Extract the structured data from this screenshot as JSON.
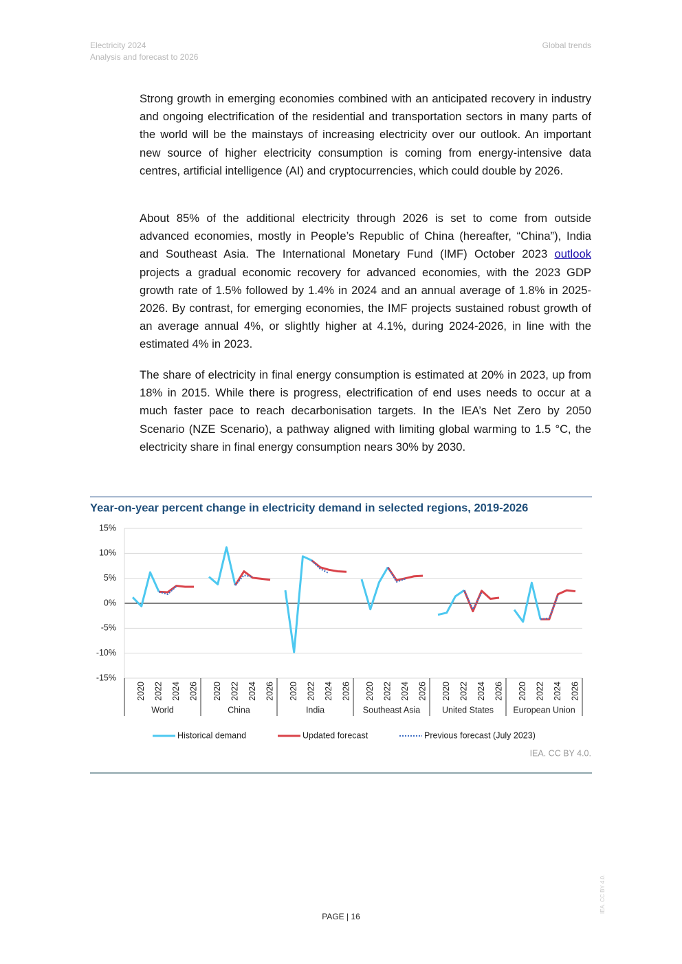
{
  "header": {
    "left_line1": "Electricity 2024",
    "left_line2": "Analysis and forecast to 2026",
    "right": "Global trends"
  },
  "paragraph_1": "Strong growth in emerging economies combined with an anticipated recovery in industry and ongoing electrification of the residential and transportation sectors in many parts of the world will be the mainstays of increasing electricity over our outlook. An important new source of higher electricity consumption is coming from energy-intensive data centres, artificial intelligence (AI) and cryptocurrencies, which could double by 2026.",
  "paragraph_2": {
    "before": "About 85% of the additional electricity through 2026 is set to come from outside advanced economies, mostly in People’s Republic of China (hereafter, “China”), India and Southeast Asia. The International Monetary Fund (IMF) October 2023 ",
    "link": "outlook",
    "after": " projects a gradual economic recovery for advanced economies, with the 2023 GDP growth rate of 1.5% followed by 1.4% in 2024 and an annual average of 1.8% in 2025-2026. By contrast, for emerging economies, the IMF projects sustained robust growth of an average annual 4%, or slightly higher at 4.1%, during 2024-2026, in line with the estimated 4% in 2023."
  },
  "paragraph_3": "The share of electricity in final energy consumption is estimated at 20% in 2023, up from 18% in 2015. While there is progress, electrification of end uses needs to occur at a much faster pace to reach decarbonisation targets. In the IEA’s Net Zero by 2050 Scenario (NZE Scenario), a pathway aligned with limiting global warming to 1.5 °C, the electricity share in final energy consumption nears 30% by 2030.",
  "chart_data": {
    "type": "line",
    "title": "Year-on-year percent change in electricity demand in selected regions, 2019-2026",
    "groups": [
      "World",
      "China",
      "India",
      "Southeast Asia",
      "United States",
      "European Union"
    ],
    "categories": [
      null,
      "2020",
      null,
      "2022",
      null,
      "2024",
      null,
      "2026"
    ],
    "series": [
      {
        "name": "Historical demand",
        "color": "#4dc8f0",
        "style": "solid",
        "values": [
          [
            1.2,
            -0.6,
            6.2,
            2.3,
            null,
            null,
            null,
            null
          ],
          [
            5.3,
            3.8,
            11.2,
            3.6,
            null,
            null,
            null,
            null
          ],
          [
            2.6,
            -9.8,
            9.4,
            8.6,
            null,
            null,
            null,
            null
          ],
          [
            4.8,
            -1.2,
            4.2,
            7.2,
            null,
            null,
            null,
            null
          ],
          [
            -2.3,
            -1.9,
            1.4,
            2.6,
            null,
            null,
            null,
            null
          ],
          [
            -1.3,
            -3.7,
            4.1,
            -3.2,
            null,
            null,
            null,
            null
          ]
        ]
      },
      {
        "name": "Updated forecast",
        "color": "#d9434a",
        "style": "solid",
        "values": [
          [
            null,
            null,
            null,
            2.3,
            2.2,
            3.5,
            3.3,
            3.3
          ],
          [
            null,
            null,
            null,
            3.6,
            6.4,
            5.1,
            4.9,
            4.7
          ],
          [
            null,
            null,
            null,
            8.6,
            7.2,
            6.7,
            6.4,
            6.3
          ],
          [
            null,
            null,
            null,
            7.2,
            4.6,
            5.0,
            5.4,
            5.5
          ],
          [
            null,
            null,
            null,
            2.6,
            -1.6,
            2.5,
            0.9,
            1.1
          ],
          [
            null,
            null,
            null,
            -3.2,
            -3.2,
            1.8,
            2.6,
            2.4
          ]
        ]
      },
      {
        "name": "Previous forecast (July 2023)",
        "color": "#4472c4",
        "style": "dotted",
        "values": [
          [
            null,
            null,
            null,
            2.3,
            1.8,
            3.4,
            null,
            null
          ],
          [
            null,
            null,
            null,
            3.6,
            5.6,
            5.3,
            null,
            null
          ],
          [
            null,
            null,
            null,
            8.6,
            6.9,
            6.0,
            null,
            null
          ],
          [
            null,
            null,
            null,
            7.2,
            4.3,
            4.9,
            null,
            null
          ],
          [
            null,
            null,
            null,
            2.6,
            -1.2,
            2.1,
            null,
            null
          ],
          [
            null,
            null,
            null,
            -3.2,
            -3.0,
            1.6,
            null,
            null
          ]
        ]
      }
    ],
    "ylim": [
      -15,
      15
    ],
    "yticks": [
      {
        "value": -15,
        "label": "-15%"
      },
      {
        "value": -10,
        "label": "-10%"
      },
      {
        "value": -5,
        "label": "-5%"
      },
      {
        "value": 0,
        "label": "0%"
      },
      {
        "value": 5,
        "label": "5%"
      },
      {
        "value": 10,
        "label": "10%"
      },
      {
        "value": 15,
        "label": "15%"
      }
    ],
    "grid": true,
    "legend": "bottom",
    "source": "IEA. CC BY 4.0."
  },
  "footer": "PAGE | 16",
  "side_note": "IEA. CC BY 4.0."
}
